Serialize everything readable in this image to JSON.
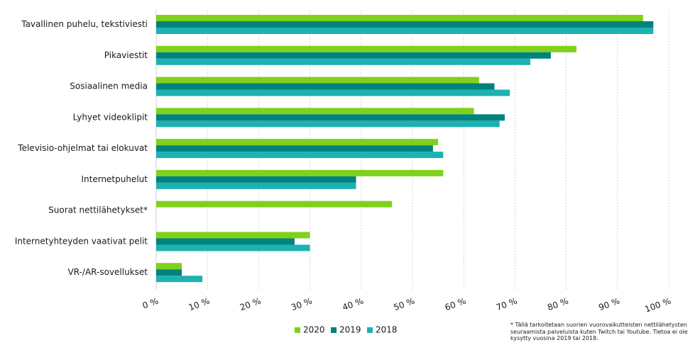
{
  "chart_data": {
    "type": "bar",
    "orientation": "horizontal",
    "categories": [
      "Tavallinen puhelu, tekstiviesti",
      "Pikaviestit",
      "Sosiaalinen media",
      "Lyhyet videoklipit",
      "Televisio-ohjelmat tai elokuvat",
      "Internetpuhelut",
      "Suorat nettilähetykset*",
      "Internetyhteyden vaativat pelit",
      "VR-/AR-sovellukset"
    ],
    "series": [
      {
        "name": "2020",
        "color": "#7fd11b",
        "values": [
          95,
          82,
          63,
          62,
          55,
          56,
          46,
          30,
          5
        ]
      },
      {
        "name": "2019",
        "color": "#00837e",
        "values": [
          97,
          77,
          66,
          68,
          54,
          39,
          null,
          27,
          5
        ]
      },
      {
        "name": "2018",
        "color": "#1eb1b2",
        "values": [
          97,
          73,
          69,
          67,
          56,
          39,
          null,
          30,
          9
        ]
      }
    ],
    "xlim": [
      0,
      100
    ],
    "x_ticks": [
      "0 %",
      "10 %",
      "20 %",
      "30 %",
      "40 %",
      "50 %",
      "60 %",
      "70 %",
      "80 %",
      "90 %",
      "100 %"
    ],
    "grid": "vertical dashed",
    "legend_position": "bottom"
  },
  "footnote": "* Tällä tarkoitetaan suorien vuorovaikutteisten nettilähetysten seuraamista palveluista kuten Twitch tai Youtube. Tietoa ei ole kysytty vuosina 2019 tai 2018."
}
